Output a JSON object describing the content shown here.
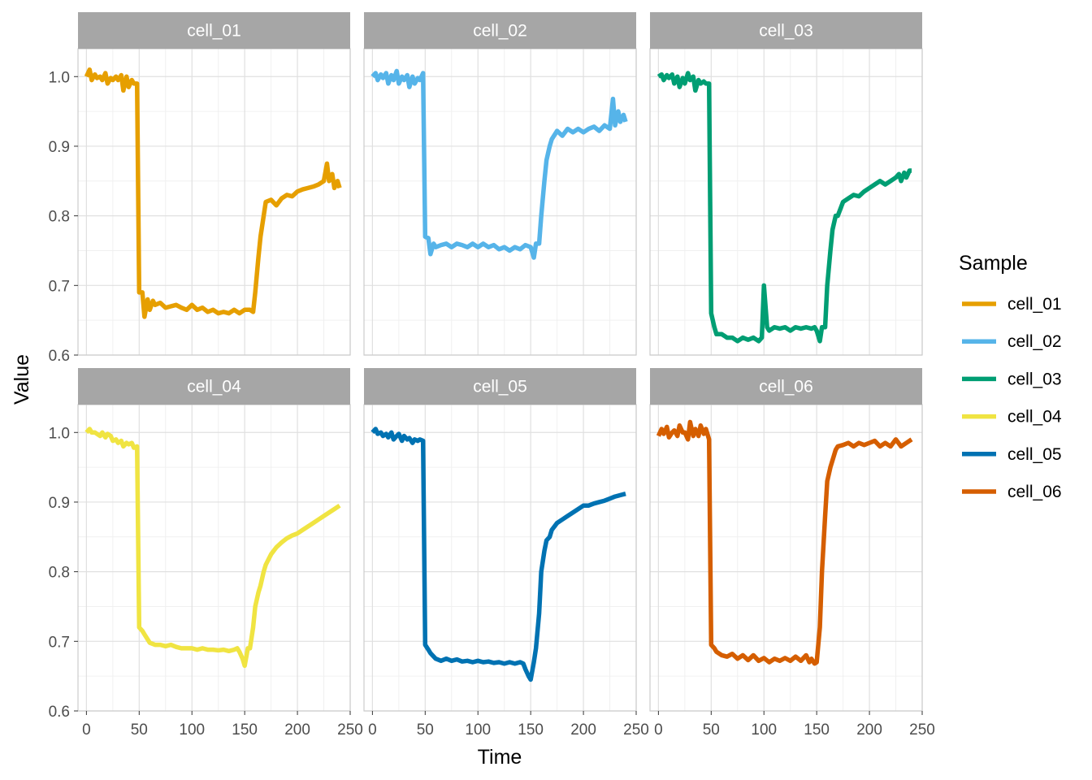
{
  "chart_data": {
    "type": "line",
    "layout": "facet-grid-2x3",
    "xlabel": "Time",
    "ylabel": "Value",
    "xlim": [
      -8,
      250
    ],
    "ylim": [
      0.6,
      1.04
    ],
    "x_ticks": [
      0,
      50,
      100,
      150,
      200,
      250
    ],
    "x_tick_labels": [
      "0",
      "50",
      "100",
      "150",
      "200",
      "250"
    ],
    "y_ticks": [
      0.6,
      0.7,
      0.8,
      0.9,
      1.0
    ],
    "y_tick_labels": [
      "0.6",
      "0.7",
      "0.8",
      "0.9",
      "1.0"
    ],
    "grid": true,
    "legend": {
      "title": "Sample",
      "position": "right"
    },
    "series": [
      {
        "name": "cell_01",
        "color": "#E69F00",
        "x": [
          0,
          3,
          5,
          8,
          10,
          13,
          15,
          18,
          20,
          23,
          25,
          28,
          30,
          33,
          35,
          38,
          40,
          43,
          45,
          48,
          50,
          53,
          55,
          58,
          60,
          63,
          65,
          70,
          75,
          80,
          85,
          90,
          95,
          100,
          105,
          110,
          115,
          120,
          125,
          130,
          135,
          140,
          145,
          150,
          155,
          158,
          160,
          163,
          165,
          168,
          170,
          175,
          180,
          185,
          190,
          195,
          200,
          205,
          210,
          215,
          220,
          225,
          228,
          230,
          233,
          235,
          238,
          240
        ],
        "y": [
          1.0,
          1.01,
          0.995,
          1.003,
          0.998,
          1.0,
          0.995,
          1.005,
          0.99,
          0.998,
          0.995,
          1.0,
          0.995,
          1.002,
          0.98,
          1.0,
          0.985,
          0.995,
          0.99,
          0.99,
          0.69,
          0.69,
          0.655,
          0.68,
          0.665,
          0.678,
          0.672,
          0.675,
          0.668,
          0.67,
          0.672,
          0.668,
          0.665,
          0.672,
          0.665,
          0.668,
          0.662,
          0.665,
          0.66,
          0.662,
          0.66,
          0.665,
          0.66,
          0.665,
          0.665,
          0.662,
          0.69,
          0.74,
          0.77,
          0.8,
          0.82,
          0.823,
          0.815,
          0.825,
          0.83,
          0.828,
          0.835,
          0.838,
          0.84,
          0.842,
          0.845,
          0.85,
          0.875,
          0.85,
          0.86,
          0.84,
          0.85,
          0.84
        ]
      },
      {
        "name": "cell_02",
        "color": "#56B4E9",
        "x": [
          0,
          3,
          5,
          8,
          10,
          13,
          15,
          18,
          20,
          23,
          25,
          28,
          30,
          33,
          35,
          38,
          40,
          43,
          45,
          48,
          50,
          53,
          55,
          58,
          60,
          65,
          70,
          75,
          80,
          85,
          90,
          95,
          100,
          105,
          110,
          115,
          120,
          125,
          130,
          135,
          140,
          145,
          150,
          153,
          155,
          158,
          160,
          163,
          165,
          168,
          170,
          175,
          180,
          185,
          190,
          195,
          200,
          205,
          210,
          215,
          220,
          225,
          228,
          230,
          233,
          235,
          238,
          240
        ],
        "y": [
          1.0,
          1.005,
          0.995,
          1.003,
          0.998,
          1.005,
          0.99,
          1.002,
          0.995,
          1.008,
          0.99,
          1.0,
          0.995,
          1.002,
          0.985,
          1.0,
          0.99,
          0.998,
          0.995,
          1.005,
          0.77,
          0.768,
          0.745,
          0.76,
          0.755,
          0.758,
          0.76,
          0.755,
          0.76,
          0.758,
          0.755,
          0.76,
          0.755,
          0.76,
          0.755,
          0.758,
          0.752,
          0.755,
          0.75,
          0.755,
          0.752,
          0.758,
          0.755,
          0.74,
          0.76,
          0.76,
          0.8,
          0.85,
          0.88,
          0.9,
          0.91,
          0.922,
          0.915,
          0.925,
          0.92,
          0.925,
          0.92,
          0.925,
          0.928,
          0.922,
          0.93,
          0.925,
          0.968,
          0.93,
          0.95,
          0.935,
          0.945,
          0.935
        ]
      },
      {
        "name": "cell_03",
        "color": "#009E73",
        "x": [
          0,
          3,
          5,
          8,
          10,
          13,
          15,
          18,
          20,
          23,
          25,
          28,
          30,
          33,
          35,
          38,
          40,
          43,
          45,
          48,
          50,
          53,
          55,
          60,
          65,
          70,
          75,
          80,
          85,
          90,
          95,
          98,
          100,
          103,
          105,
          110,
          115,
          120,
          125,
          130,
          135,
          140,
          145,
          148,
          150,
          153,
          155,
          158,
          160,
          163,
          165,
          168,
          170,
          175,
          180,
          185,
          190,
          195,
          200,
          205,
          210,
          215,
          220,
          225,
          228,
          230,
          233,
          235,
          238,
          240
        ],
        "y": [
          1.0,
          1.003,
          0.995,
          1.002,
          0.998,
          1.003,
          0.99,
          1.0,
          0.985,
          0.998,
          0.99,
          1.005,
          0.995,
          1.0,
          0.98,
          0.995,
          0.99,
          0.993,
          0.99,
          0.99,
          0.66,
          0.64,
          0.63,
          0.63,
          0.625,
          0.625,
          0.62,
          0.625,
          0.622,
          0.625,
          0.62,
          0.625,
          0.7,
          0.64,
          0.635,
          0.64,
          0.638,
          0.64,
          0.635,
          0.64,
          0.638,
          0.64,
          0.638,
          0.64,
          0.635,
          0.62,
          0.64,
          0.64,
          0.7,
          0.75,
          0.78,
          0.8,
          0.8,
          0.82,
          0.825,
          0.83,
          0.828,
          0.835,
          0.84,
          0.845,
          0.85,
          0.845,
          0.85,
          0.855,
          0.86,
          0.85,
          0.862,
          0.855,
          0.865,
          0.865
        ]
      },
      {
        "name": "cell_04",
        "color": "#F0E442",
        "x": [
          0,
          3,
          5,
          8,
          10,
          13,
          15,
          18,
          20,
          23,
          25,
          28,
          30,
          33,
          35,
          38,
          40,
          43,
          45,
          48,
          50,
          53,
          55,
          60,
          65,
          70,
          75,
          80,
          85,
          90,
          95,
          100,
          105,
          110,
          115,
          120,
          125,
          130,
          135,
          140,
          143,
          145,
          148,
          150,
          153,
          155,
          158,
          160,
          163,
          165,
          168,
          170,
          175,
          180,
          185,
          190,
          195,
          200,
          205,
          210,
          215,
          220,
          225,
          230,
          235,
          240
        ],
        "y": [
          1.0,
          1.005,
          1.0,
          1.0,
          0.998,
          0.995,
          1.0,
          0.993,
          0.998,
          0.995,
          0.988,
          0.99,
          0.985,
          0.988,
          0.98,
          0.985,
          0.983,
          0.985,
          0.978,
          0.98,
          0.72,
          0.715,
          0.71,
          0.698,
          0.695,
          0.695,
          0.693,
          0.695,
          0.692,
          0.69,
          0.69,
          0.69,
          0.688,
          0.69,
          0.688,
          0.688,
          0.687,
          0.688,
          0.686,
          0.688,
          0.69,
          0.685,
          0.675,
          0.665,
          0.69,
          0.69,
          0.72,
          0.75,
          0.77,
          0.78,
          0.8,
          0.81,
          0.825,
          0.835,
          0.842,
          0.848,
          0.852,
          0.855,
          0.86,
          0.865,
          0.87,
          0.875,
          0.88,
          0.885,
          0.89,
          0.895
        ]
      },
      {
        "name": "cell_05",
        "color": "#0072B2",
        "x": [
          0,
          3,
          5,
          8,
          10,
          13,
          15,
          18,
          20,
          23,
          25,
          28,
          30,
          33,
          35,
          38,
          40,
          43,
          45,
          48,
          50,
          53,
          55,
          60,
          65,
          70,
          75,
          80,
          85,
          90,
          95,
          100,
          105,
          110,
          115,
          120,
          125,
          130,
          135,
          140,
          143,
          145,
          148,
          150,
          153,
          155,
          158,
          160,
          163,
          165,
          168,
          170,
          175,
          180,
          185,
          190,
          195,
          200,
          205,
          210,
          215,
          220,
          225,
          230,
          235,
          240
        ],
        "y": [
          1.0,
          1.005,
          0.998,
          1.0,
          0.995,
          0.998,
          0.993,
          1.0,
          0.99,
          0.995,
          0.998,
          0.988,
          0.995,
          0.99,
          0.992,
          0.985,
          0.99,
          0.988,
          0.99,
          0.988,
          0.695,
          0.688,
          0.683,
          0.675,
          0.672,
          0.675,
          0.672,
          0.674,
          0.671,
          0.672,
          0.67,
          0.672,
          0.67,
          0.671,
          0.669,
          0.67,
          0.668,
          0.67,
          0.668,
          0.67,
          0.668,
          0.66,
          0.65,
          0.645,
          0.67,
          0.69,
          0.74,
          0.8,
          0.83,
          0.845,
          0.85,
          0.86,
          0.87,
          0.875,
          0.88,
          0.885,
          0.89,
          0.895,
          0.895,
          0.898,
          0.9,
          0.902,
          0.905,
          0.908,
          0.91,
          0.912
        ]
      },
      {
        "name": "cell_06",
        "color": "#D55E00",
        "x": [
          0,
          3,
          5,
          8,
          10,
          13,
          15,
          18,
          20,
          23,
          25,
          28,
          30,
          33,
          35,
          38,
          40,
          43,
          45,
          48,
          50,
          53,
          55,
          60,
          65,
          70,
          75,
          80,
          85,
          90,
          95,
          100,
          105,
          110,
          115,
          120,
          125,
          130,
          135,
          140,
          143,
          145,
          148,
          150,
          153,
          155,
          158,
          160,
          163,
          165,
          168,
          170,
          175,
          180,
          185,
          190,
          195,
          200,
          205,
          210,
          215,
          220,
          225,
          230,
          235,
          240
        ],
        "y": [
          0.995,
          1.005,
          0.998,
          1.008,
          0.993,
          1.0,
          1.003,
          0.995,
          1.01,
          1.0,
          1.0,
          0.99,
          1.015,
          0.995,
          1.005,
          0.995,
          1.01,
          0.998,
          1.005,
          0.99,
          0.695,
          0.69,
          0.685,
          0.68,
          0.678,
          0.682,
          0.675,
          0.68,
          0.673,
          0.68,
          0.672,
          0.676,
          0.67,
          0.675,
          0.672,
          0.676,
          0.672,
          0.678,
          0.672,
          0.68,
          0.67,
          0.675,
          0.668,
          0.67,
          0.72,
          0.8,
          0.88,
          0.93,
          0.95,
          0.96,
          0.975,
          0.98,
          0.982,
          0.985,
          0.98,
          0.985,
          0.982,
          0.985,
          0.988,
          0.98,
          0.985,
          0.98,
          0.99,
          0.98,
          0.985,
          0.99
        ]
      }
    ]
  }
}
